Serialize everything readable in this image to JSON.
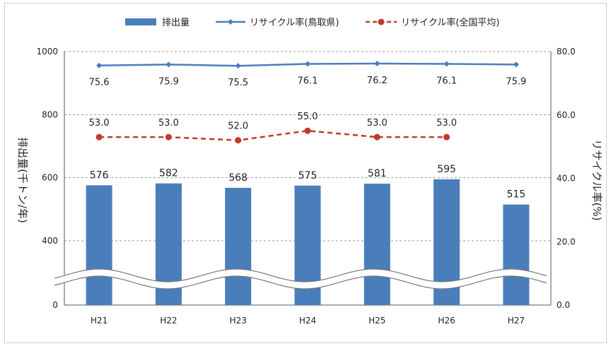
{
  "chart_data": {
    "type": "bar",
    "categories": [
      "H21",
      "H22",
      "H23",
      "H24",
      "H25",
      "H26",
      "H27"
    ],
    "series": [
      {
        "name": "排出量",
        "type": "bar",
        "axis": "left",
        "color": "#4a7ebb",
        "values": [
          576,
          582,
          568,
          575,
          581,
          595,
          515
        ]
      },
      {
        "name": "リサイクル率(鳥取県)",
        "type": "line",
        "axis": "right",
        "color": "#4a7ebb",
        "line_style": "solid",
        "values": [
          75.6,
          75.9,
          75.5,
          76.1,
          76.2,
          76.1,
          75.9
        ]
      },
      {
        "name": "リサイクル率(全国平均)",
        "type": "line",
        "axis": "right",
        "color": "#c0392b",
        "line_style": "dashed",
        "values": [
          53.0,
          53.0,
          52.0,
          55.0,
          53.0,
          53.0,
          null
        ]
      }
    ],
    "bar_labels": [
      "576",
      "582",
      "568",
      "575",
      "581",
      "595",
      "515"
    ],
    "pref_labels": [
      "75.6",
      "75.9",
      "75.5",
      "76.1",
      "76.2",
      "76.1",
      "75.9"
    ],
    "national_labels": [
      "53.0",
      "53.0",
      "52.0",
      "55.0",
      "53.0",
      "53.0",
      ""
    ],
    "ylabel": "排出量(千トン/年)",
    "ylabel2": "リサイクル率(%)",
    "ylim": [
      0,
      1000
    ],
    "y2lim": [
      0,
      80
    ],
    "yticks": [
      "0",
      "400",
      "600",
      "800",
      "1000"
    ],
    "y2ticks": [
      "0.0",
      "20.0",
      "40.0",
      "60.0",
      "80.0"
    ],
    "axis_break": true,
    "grid": true,
    "legend_position": "top"
  }
}
